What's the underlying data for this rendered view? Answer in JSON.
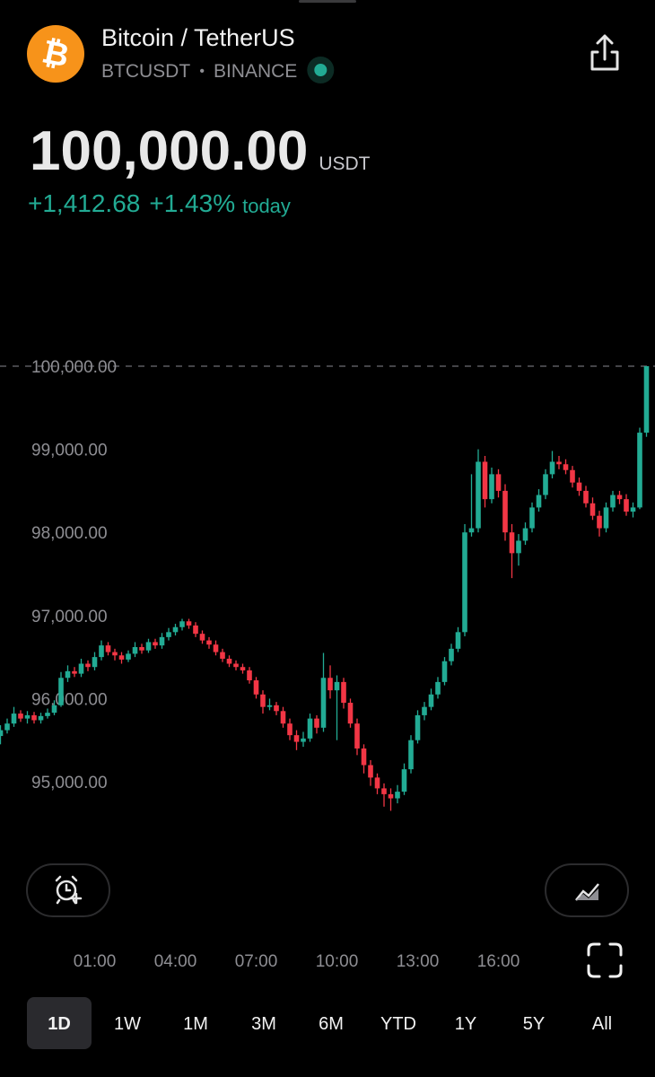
{
  "header": {
    "icon": "₿",
    "title": "Bitcoin / TetherUS",
    "symbol": "BTCUSDT",
    "separator": "•",
    "exchange": "BINANCE"
  },
  "quote": {
    "price": {
      "value": 100000,
      "label": "100,000.00"
    },
    "currency": "USDT",
    "change": "+1,412.68",
    "change_percent": "+1.43%",
    "period": "today"
  },
  "chart_data": {
    "type": "candlestick",
    "up_color": "#22ab94",
    "down_color": "#f23645",
    "ylim": [
      94000,
      101000
    ],
    "yticks": [
      {
        "value": 95000,
        "label": "95,000.00"
      },
      {
        "value": 96000,
        "label": "96,000.00"
      },
      {
        "value": 97000,
        "label": "97,000.00"
      },
      {
        "value": 98000,
        "label": "98,000.00"
      },
      {
        "value": 99000,
        "label": "99,000.00"
      },
      {
        "value": 100000,
        "label": "100,000.00"
      }
    ],
    "xticks": [
      {
        "value": 14,
        "label": "01:00"
      },
      {
        "value": 26,
        "label": "04:00"
      },
      {
        "value": 38,
        "label": "07:00"
      },
      {
        "value": 50,
        "label": "10:00"
      },
      {
        "value": 62,
        "label": "13:00"
      },
      {
        "value": 74,
        "label": "16:00"
      }
    ],
    "candles": [
      [
        95550,
        95680,
        95450,
        95620
      ],
      [
        95620,
        95760,
        95580,
        95700
      ],
      [
        95700,
        95900,
        95660,
        95820
      ],
      [
        95820,
        95860,
        95720,
        95760
      ],
      [
        95760,
        95850,
        95700,
        95800
      ],
      [
        95800,
        95840,
        95700,
        95740
      ],
      [
        95740,
        95830,
        95700,
        95790
      ],
      [
        95790,
        95880,
        95760,
        95830
      ],
      [
        95830,
        95980,
        95800,
        95920
      ],
      [
        95920,
        96320,
        95900,
        96250
      ],
      [
        96250,
        96400,
        96200,
        96330
      ],
      [
        96330,
        96380,
        96260,
        96300
      ],
      [
        96300,
        96480,
        96260,
        96420
      ],
      [
        96420,
        96460,
        96330,
        96380
      ],
      [
        96380,
        96560,
        96340,
        96500
      ],
      [
        96500,
        96700,
        96460,
        96640
      ],
      [
        96640,
        96680,
        96520,
        96560
      ],
      [
        96560,
        96600,
        96460,
        96520
      ],
      [
        96520,
        96560,
        96420,
        96470
      ],
      [
        96470,
        96580,
        96440,
        96540
      ],
      [
        96540,
        96680,
        96500,
        96620
      ],
      [
        96620,
        96660,
        96540,
        96580
      ],
      [
        96580,
        96720,
        96550,
        96680
      ],
      [
        96680,
        96720,
        96600,
        96640
      ],
      [
        96640,
        96790,
        96600,
        96740
      ],
      [
        96740,
        96850,
        96700,
        96800
      ],
      [
        96800,
        96900,
        96760,
        96860
      ],
      [
        96860,
        96960,
        96820,
        96930
      ],
      [
        96930,
        96960,
        96840,
        96880
      ],
      [
        96880,
        96920,
        96740,
        96780
      ],
      [
        96780,
        96820,
        96660,
        96700
      ],
      [
        96700,
        96740,
        96600,
        96650
      ],
      [
        96650,
        96700,
        96520,
        96560
      ],
      [
        96560,
        96600,
        96440,
        96480
      ],
      [
        96480,
        96520,
        96380,
        96420
      ],
      [
        96420,
        96460,
        96340,
        96380
      ],
      [
        96380,
        96420,
        96300,
        96340
      ],
      [
        96340,
        96380,
        96180,
        96220
      ],
      [
        96220,
        96260,
        96000,
        96050
      ],
      [
        96050,
        96100,
        95820,
        95900
      ],
      [
        95900,
        96000,
        95860,
        95920
      ],
      [
        95920,
        95960,
        95800,
        95850
      ],
      [
        95850,
        95900,
        95650,
        95700
      ],
      [
        95700,
        95760,
        95500,
        95560
      ],
      [
        95560,
        95620,
        95380,
        95480
      ],
      [
        95480,
        95600,
        95420,
        95520
      ],
      [
        95520,
        95820,
        95480,
        95760
      ],
      [
        95760,
        95800,
        95580,
        95650
      ],
      [
        95650,
        96550,
        95600,
        96250
      ],
      [
        96250,
        96400,
        96000,
        96100
      ],
      [
        96100,
        96280,
        95500,
        96200
      ],
      [
        96200,
        96250,
        95880,
        95950
      ],
      [
        95950,
        96000,
        95650,
        95700
      ],
      [
        95700,
        95760,
        95320,
        95400
      ],
      [
        95400,
        95450,
        95100,
        95200
      ],
      [
        95200,
        95260,
        94950,
        95050
      ],
      [
        95050,
        95100,
        94850,
        94920
      ],
      [
        94920,
        94980,
        94700,
        94850
      ],
      [
        94850,
        94920,
        94650,
        94800
      ],
      [
        94800,
        94960,
        94740,
        94880
      ],
      [
        94880,
        95220,
        94840,
        95150
      ],
      [
        95150,
        95560,
        95100,
        95500
      ],
      [
        95500,
        95860,
        95460,
        95800
      ],
      [
        95800,
        95960,
        95740,
        95900
      ],
      [
        95900,
        96120,
        95860,
        96050
      ],
      [
        96050,
        96260,
        96000,
        96200
      ],
      [
        96200,
        96500,
        96160,
        96450
      ],
      [
        96450,
        96660,
        96400,
        96600
      ],
      [
        96600,
        96860,
        96560,
        96800
      ],
      [
        96800,
        98100,
        96750,
        98000
      ],
      [
        98000,
        98700,
        97950,
        98050
      ],
      [
        98050,
        99000,
        98000,
        98850
      ],
      [
        98850,
        98920,
        98300,
        98400
      ],
      [
        98400,
        98780,
        98350,
        98700
      ],
      [
        98700,
        98760,
        98420,
        98500
      ],
      [
        98500,
        98580,
        97900,
        98000
      ],
      [
        98000,
        98100,
        97450,
        97750
      ],
      [
        97750,
        97980,
        97600,
        97900
      ],
      [
        97900,
        98120,
        97850,
        98050
      ],
      [
        98050,
        98360,
        98000,
        98300
      ],
      [
        98300,
        98520,
        98250,
        98450
      ],
      [
        98450,
        98760,
        98400,
        98700
      ],
      [
        98700,
        98980,
        98650,
        98850
      ],
      [
        98850,
        98920,
        98760,
        98820
      ],
      [
        98820,
        98880,
        98700,
        98750
      ],
      [
        98750,
        98800,
        98540,
        98600
      ],
      [
        98600,
        98660,
        98440,
        98500
      ],
      [
        98500,
        98560,
        98300,
        98350
      ],
      [
        98350,
        98420,
        98150,
        98200
      ],
      [
        98200,
        98260,
        97950,
        98050
      ],
      [
        98050,
        98360,
        98000,
        98300
      ],
      [
        98300,
        98500,
        98250,
        98450
      ],
      [
        98450,
        98500,
        98340,
        98400
      ],
      [
        98400,
        98460,
        98200,
        98250
      ],
      [
        98250,
        98360,
        98180,
        98300
      ],
      [
        98300,
        99260,
        98280,
        99200
      ],
      [
        99200,
        100000,
        99150,
        100000
      ]
    ]
  },
  "ranges": [
    "1D",
    "1W",
    "1M",
    "3M",
    "6M",
    "YTD",
    "1Y",
    "5Y",
    "All"
  ],
  "selected_range": 0
}
